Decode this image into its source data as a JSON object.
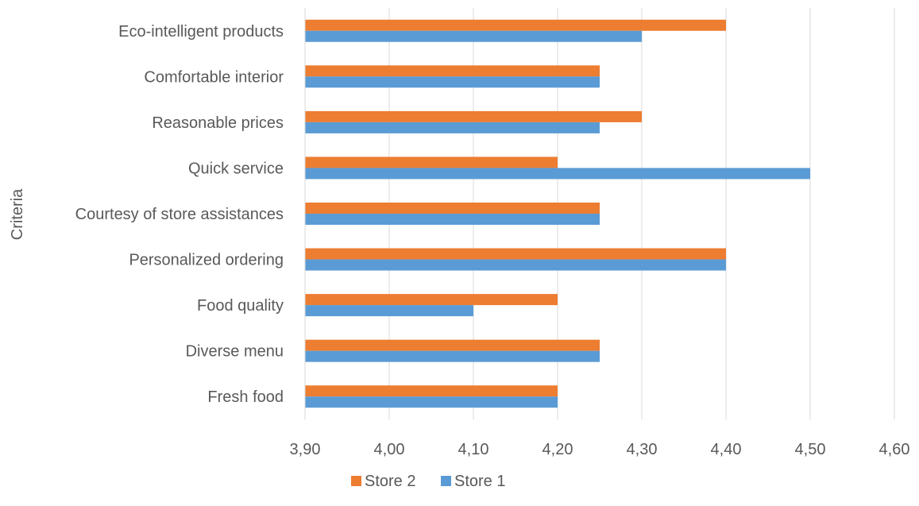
{
  "chart_data": {
    "type": "bar",
    "orientation": "horizontal",
    "title": "",
    "xlabel": "",
    "ylabel": "Criteria",
    "categories": [
      "Fresh food",
      "Diverse menu",
      "Food quality",
      "Personalized ordering ",
      "Courtesy of store assistances",
      "Quick service",
      "Reasonable prices",
      "Comfortable interior",
      "Eco-intelligent products"
    ],
    "series": [
      {
        "name": "Store 1",
        "color": "#5B9BD5",
        "values": [
          4.2,
          4.25,
          4.1,
          4.4,
          4.25,
          4.5,
          4.25,
          4.25,
          4.3
        ]
      },
      {
        "name": "Store 2",
        "color": "#ED7D31",
        "values": [
          4.2,
          4.25,
          4.2,
          4.4,
          4.25,
          4.2,
          4.3,
          4.25,
          4.4
        ]
      }
    ],
    "xlim": [
      3.9,
      4.6
    ],
    "xticks": [
      "3,90",
      "4,00",
      "4,10",
      "4,20",
      "4,30",
      "4,40",
      "4,50",
      "4,60"
    ],
    "grid": true,
    "legend_position": "bottom",
    "legend_order": [
      "Store 2",
      "Store 1"
    ]
  }
}
